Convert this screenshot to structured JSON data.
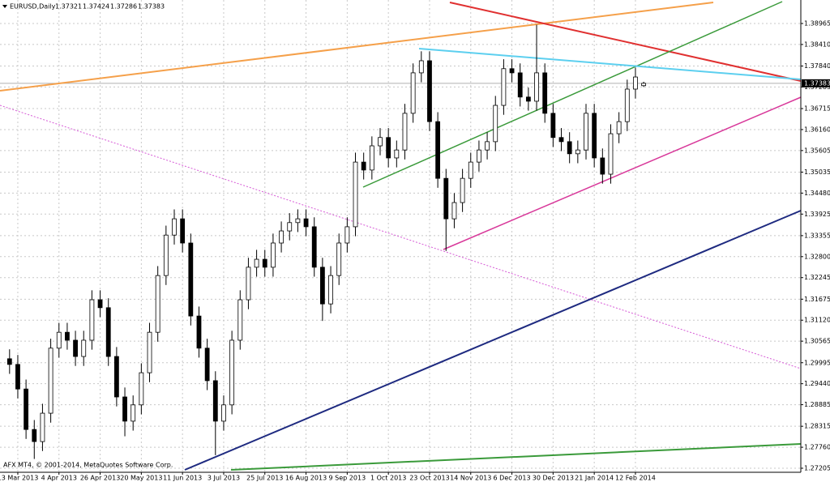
{
  "chart_data": {
    "type": "candlestick",
    "title": "EURUSD,Daily",
    "footer": "AFX MT4, © 2001-2014, MetaQuotes Software Corp.",
    "categories": [
      null,
      "13 Mar 2013",
      null,
      null,
      null,
      null,
      "4 Apr 2013",
      null,
      null,
      null,
      null,
      "26 Apr 2013",
      null,
      null,
      null,
      null,
      "20 May 2013",
      null,
      null,
      null,
      null,
      "11 Jun 2013",
      null,
      null,
      null,
      null,
      "3 Jul 2013",
      null,
      null,
      null,
      null,
      "25 Jul 2013",
      null,
      null,
      null,
      null,
      "16 Aug 2013",
      null,
      null,
      null,
      null,
      "9 Sep 2013",
      null,
      null,
      null,
      null,
      "1 Oct 2013",
      null,
      null,
      null,
      null,
      "23 Oct 2013",
      null,
      null,
      null,
      null,
      "14 Nov 2013",
      null,
      null,
      null,
      null,
      "6 Dec 2013",
      null,
      null,
      null,
      null,
      "30 Dec 2013",
      null,
      null,
      null,
      null,
      "21 Jan 2014",
      null,
      null,
      null,
      null,
      "12 Feb 2014",
      null
    ],
    "open": [
      1.301,
      1.2995,
      1.293,
      1.2823,
      1.2791,
      1.2866,
      1.3038,
      1.308,
      1.3059,
      1.3016,
      1.3059,
      1.3166,
      1.3145,
      1.3016,
      1.2909,
      1.2845,
      1.2888,
      1.2973,
      1.308,
      1.323,
      1.3337,
      1.338,
      1.3316,
      1.3123,
      1.3038,
      1.2952,
      1.2845,
      1.2888,
      1.3059,
      1.3166,
      1.3252,
      1.3273,
      1.3252,
      1.3316,
      1.3348,
      1.337,
      1.338,
      1.3359,
      1.3252,
      1.3155,
      1.323,
      1.3316,
      1.3359,
      1.353,
      1.3509,
      1.3573,
      1.3595,
      1.3541,
      1.3562,
      1.3659,
      1.3766,
      1.3798,
      1.3637,
      1.3487,
      1.338,
      1.3423,
      1.3487,
      1.353,
      1.3562,
      1.3584,
      1.368,
      1.3777,
      1.3766,
      1.3702,
      1.3691,
      1.3766,
      1.3659,
      1.3595,
      1.3584,
      1.3552,
      1.3562,
      1.3659,
      1.3541,
      1.3498,
      1.3605,
      1.3637,
      1.3723,
      1.37321
    ],
    "high": [
      1.3035,
      1.302,
      1.2955,
      1.2848,
      1.2891,
      1.3063,
      1.3105,
      1.3105,
      1.3084,
      1.3084,
      1.3191,
      1.3191,
      1.317,
      1.3041,
      1.2934,
      1.2913,
      1.2998,
      1.3105,
      1.3255,
      1.3362,
      1.3405,
      1.3405,
      1.3341,
      1.3148,
      1.3063,
      1.2977,
      1.2913,
      1.3084,
      1.3191,
      1.3277,
      1.3298,
      1.3298,
      1.3341,
      1.3373,
      1.3395,
      1.3405,
      1.3405,
      1.3384,
      1.3277,
      1.3255,
      1.3341,
      1.3384,
      1.3555,
      1.3555,
      1.3598,
      1.362,
      1.362,
      1.3587,
      1.3684,
      1.3791,
      1.3823,
      1.3823,
      1.3662,
      1.3512,
      1.3448,
      1.3512,
      1.3555,
      1.3587,
      1.3609,
      1.3705,
      1.3802,
      1.3802,
      1.3791,
      1.3727,
      1.3893,
      1.3791,
      1.3684,
      1.362,
      1.3609,
      1.3587,
      1.3684,
      1.3684,
      1.3566,
      1.363,
      1.3662,
      1.3748,
      1.378,
      1.37424
    ],
    "low": [
      1.297,
      1.2905,
      1.2798,
      1.2745,
      1.2766,
      1.2841,
      1.3013,
      1.3034,
      1.2991,
      1.2991,
      1.3034,
      1.312,
      1.2991,
      1.2884,
      1.2805,
      1.282,
      1.2863,
      1.2948,
      1.3055,
      1.3205,
      1.3312,
      1.3291,
      1.3098,
      1.3013,
      1.2927,
      1.2755,
      1.282,
      1.2863,
      1.3034,
      1.3141,
      1.3227,
      1.3227,
      1.3227,
      1.3291,
      1.3323,
      1.3345,
      1.3334,
      1.3227,
      1.311,
      1.313,
      1.3205,
      1.3291,
      1.3334,
      1.3484,
      1.3484,
      1.3548,
      1.3516,
      1.3516,
      1.3537,
      1.3634,
      1.3741,
      1.3612,
      1.3462,
      1.3295,
      1.3355,
      1.3398,
      1.3462,
      1.3505,
      1.3537,
      1.3559,
      1.3655,
      1.3741,
      1.3677,
      1.3666,
      1.3666,
      1.3634,
      1.357,
      1.3559,
      1.3527,
      1.3527,
      1.3537,
      1.3516,
      1.3473,
      1.3473,
      1.358,
      1.3612,
      1.3698,
      1.37286
    ],
    "close": [
      1.2995,
      1.293,
      1.2823,
      1.2791,
      1.2866,
      1.3038,
      1.308,
      1.3059,
      1.3016,
      1.3059,
      1.3166,
      1.3145,
      1.3016,
      1.2909,
      1.2845,
      1.2888,
      1.2973,
      1.308,
      1.323,
      1.3337,
      1.338,
      1.3316,
      1.3123,
      1.3038,
      1.2952,
      1.2845,
      1.2888,
      1.3059,
      1.3166,
      1.3252,
      1.3273,
      1.3252,
      1.3316,
      1.3348,
      1.337,
      1.338,
      1.3359,
      1.3252,
      1.3155,
      1.323,
      1.3316,
      1.3359,
      1.353,
      1.3509,
      1.3573,
      1.3595,
      1.3541,
      1.3562,
      1.3659,
      1.3766,
      1.3798,
      1.3637,
      1.3487,
      1.338,
      1.3423,
      1.3487,
      1.353,
      1.3562,
      1.3584,
      1.368,
      1.3777,
      1.3766,
      1.3702,
      1.3691,
      1.3766,
      1.3659,
      1.3595,
      1.3584,
      1.3552,
      1.3562,
      1.3659,
      1.3541,
      1.3498,
      1.3605,
      1.3637,
      1.3723,
      1.3755,
      1.37383
    ],
    "ylim": [
      1.27098,
      1.39586
    ],
    "yticks": [
      1.38965,
      {
        "value": 1.3841,
        "label": "1.38410"
      },
      {
        "value": 1.3784,
        "label": "1.37840"
      },
      1.37285,
      1.36715,
      {
        "value": 1.3616,
        "label": "1.36160"
      },
      1.35605,
      1.35035,
      {
        "value": 1.3448,
        "label": "1.34480"
      },
      1.33925,
      1.33355,
      {
        "value": 1.328,
        "label": "1.32800"
      },
      1.32245,
      1.31675,
      {
        "value": 1.3112,
        "label": "1.31120"
      },
      1.30565,
      1.29995,
      {
        "value": 1.2944,
        "label": "1.29440"
      },
      1.28885,
      1.28315,
      {
        "value": 1.2776,
        "label": "1.27760"
      },
      1.27205
    ],
    "grid": true,
    "up_color": "#ffffff",
    "down_color": "#000000"
  }
}
